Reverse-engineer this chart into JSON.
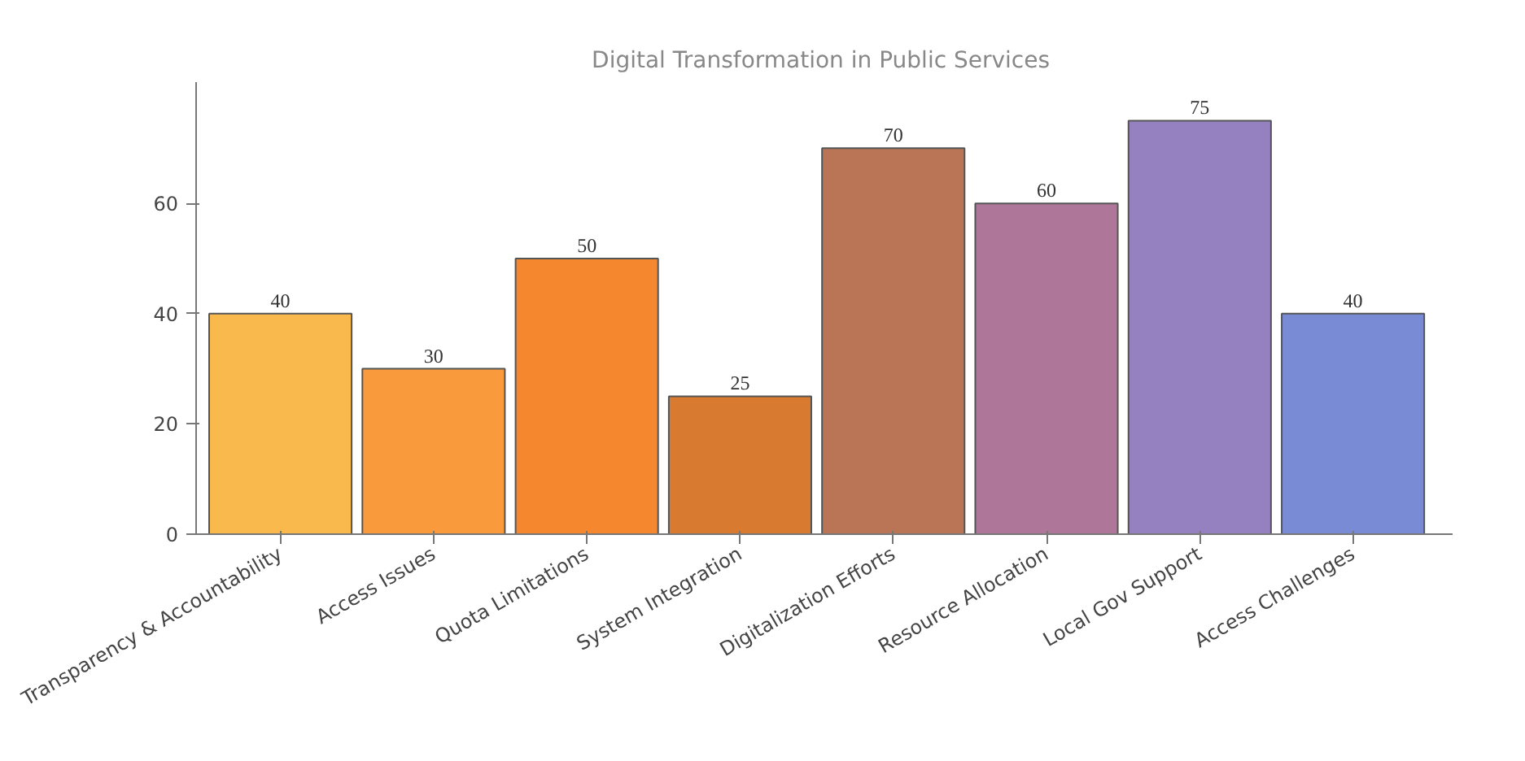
{
  "chart_data": {
    "type": "bar",
    "title": "Digital Transformation  in Public Services",
    "categories": [
      "Transparency & Accountability",
      "Access Issues",
      "Quota Limitations",
      "System Integration",
      "Digitalization Efforts",
      "Resource Allocation",
      "Local Gov Support",
      "Access Challenges"
    ],
    "values": [
      40,
      30,
      50,
      25,
      70,
      60,
      75,
      40
    ],
    "colors": [
      "#f9b94c",
      "#f99b3c",
      "#f5882f",
      "#d87a2f",
      "#b97556",
      "#ae7698",
      "#9580c0",
      "#7a8bd5"
    ],
    "ylim": [
      0,
      82
    ],
    "yticks": [
      0,
      20,
      40,
      60
    ],
    "data_labels": true,
    "grid": false
  }
}
